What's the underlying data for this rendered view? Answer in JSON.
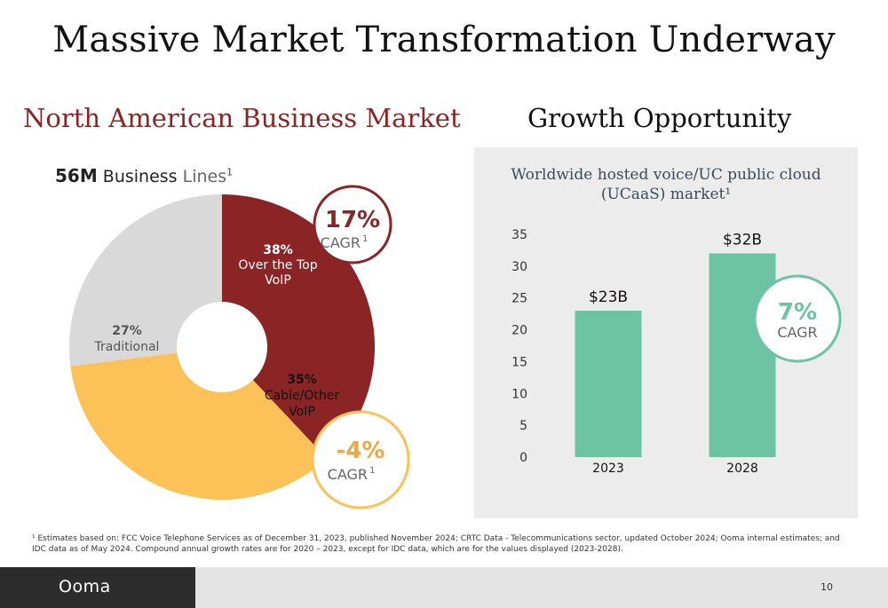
{
  "title": "Massive Market Transformation Underway",
  "left_heading": "North American Business Market",
  "right_heading": "Growth Opportunity",
  "business_lines": {
    "value": "56M",
    "label_a": "Business",
    "label_b": "Lines",
    "sup": "1"
  },
  "colors": {
    "ott": "#8b2525",
    "cable": "#fcc257",
    "traditional": "#d9d9d9",
    "bar": "#6cc4a4",
    "heading_red": "#8b2525"
  },
  "pie_cagr": [
    {
      "value": "17%",
      "label": "CAGR",
      "sup": "1"
    },
    {
      "value": "-4%",
      "label": "CAGR",
      "sup": "1"
    }
  ],
  "bar_cagr": {
    "value": "7%",
    "label": "CAGR"
  },
  "footnote": "¹ Estimates based on: FCC Voice Telephone Services as of December 31, 2023, published November 2024; CRTC Data - Telecommunications sector, updated October 2024; Ooma internal estimates;  and IDC data as of May 2024. Compound annual growth rates are for 2020 – 2023, except for IDC data, which are for the values displayed (2023-2028).",
  "footer": {
    "logo": "Ooma",
    "page": "10"
  },
  "chart_data": [
    {
      "type": "pie",
      "slices": [
        {
          "pct_label": "38%",
          "label_lines": [
            "Over the Top",
            "VoIP"
          ],
          "value": 38
        },
        {
          "pct_label": "35%",
          "label_lines": [
            "Cable/Other",
            "VoIP"
          ],
          "value": 35
        },
        {
          "pct_label": "27%",
          "label_lines": [
            "Traditional"
          ],
          "value": 27
        }
      ]
    },
    {
      "type": "bar",
      "title_lines": [
        "Worldwide hosted voice/UC public cloud",
        "(UCaaS) market¹"
      ],
      "categories": [
        "2023",
        "2028"
      ],
      "values": [
        23,
        32
      ],
      "data_labels": [
        "$23B",
        "$32B"
      ],
      "ylim": [
        0,
        35
      ],
      "yticks": [
        "0",
        "5",
        "10",
        "15",
        "20",
        "25",
        "30",
        "35"
      ],
      "grid": false
    }
  ]
}
